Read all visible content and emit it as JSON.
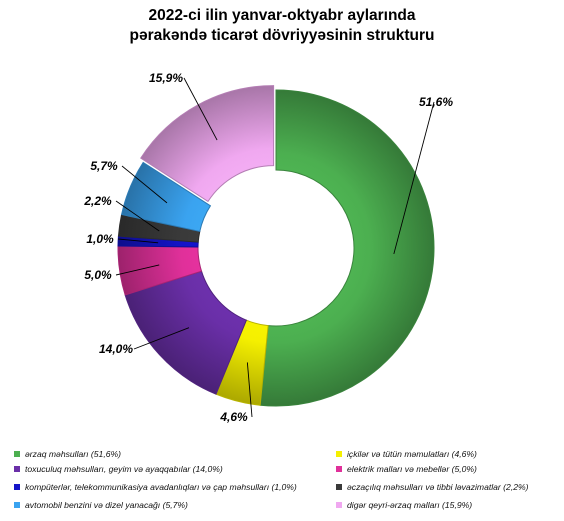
{
  "title": {
    "line1": "2022-ci ilin yanvar-oktyabr aylarında",
    "line2": "pərakəndə ticarət dövriyyəsinin strukturu"
  },
  "chart_data": {
    "type": "pie",
    "subtype": "donut",
    "unit": "%",
    "slices": [
      {
        "name": "ərzaq məhsulları (51,6%)",
        "value": 51.6,
        "label": "51,6%",
        "color": "#4caf50"
      },
      {
        "name": "içkilər və tütün məmulatları (4,6%)",
        "value": 4.6,
        "label": "4,6%",
        "color": "#f5f000"
      },
      {
        "name": "toxuculuq məhsulları, geyim və ayaqqabılar (14,0%)",
        "value": 14.0,
        "label": "14,0%",
        "color": "#6a2fa8"
      },
      {
        "name": "elektrik malları və mebellər (5,0%)",
        "value": 5.0,
        "label": "5,0%",
        "color": "#e0309a"
      },
      {
        "name": "kompüterlər, telekommunikasiya avadanlıqları və çap məhsulları (1,0%)",
        "value": 1.0,
        "label": "1,0%",
        "color": "#1414c8"
      },
      {
        "name": "əczaçılıq məhsulları və tibbi ləvazimatlar (2,2%)",
        "value": 2.2,
        "label": "2,2%",
        "color": "#3a3a3a"
      },
      {
        "name": "avtomobil benzini və dizel yanacağı (5,7%)",
        "value": 5.7,
        "label": "5,7%",
        "color": "#3aa3f0"
      },
      {
        "name": "digər qeyri-ərzaq malları (15,9%)",
        "value": 15.9,
        "label": "15,9%",
        "color": "#f0a8f0"
      }
    ],
    "legend_position": "bottom"
  }
}
